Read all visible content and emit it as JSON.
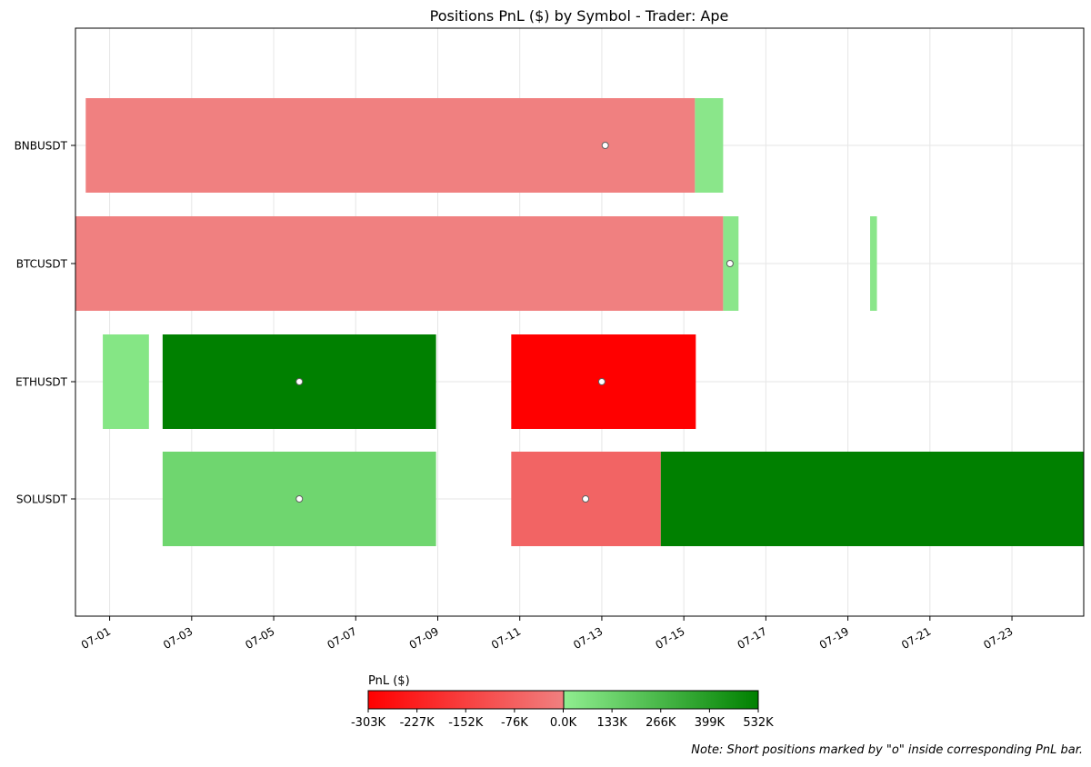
{
  "chart_data": {
    "type": "bar",
    "orientation": "horizontal-timeline",
    "title": "Positions PnL ($) by Symbol - Trader: Ape",
    "xlabel": "",
    "ylabel": "",
    "x_axis_type": "date",
    "xlim": [
      "2025-06-30 04:00",
      "2025-07-24 18:00"
    ],
    "x_ticks": [
      {
        "date": "2025-07-01",
        "label": "07-01"
      },
      {
        "date": "2025-07-03",
        "label": "07-03"
      },
      {
        "date": "2025-07-05",
        "label": "07-05"
      },
      {
        "date": "2025-07-07",
        "label": "07-07"
      },
      {
        "date": "2025-07-09",
        "label": "07-09"
      },
      {
        "date": "2025-07-11",
        "label": "07-11"
      },
      {
        "date": "2025-07-13",
        "label": "07-13"
      },
      {
        "date": "2025-07-15",
        "label": "07-15"
      },
      {
        "date": "2025-07-17",
        "label": "07-17"
      },
      {
        "date": "2025-07-19",
        "label": "07-19"
      },
      {
        "date": "2025-07-21",
        "label": "07-21"
      },
      {
        "date": "2025-07-23",
        "label": "07-23"
      }
    ],
    "categories": [
      "BNBUSDT",
      "BTCUSDT",
      "ETHUSDT",
      "SOLUSDT"
    ],
    "grid": true,
    "positions": [
      {
        "symbol": "BNBUSDT",
        "start": "2025-06-30 10:00",
        "end": "2025-07-15 06:30",
        "color": "#f08080",
        "short": true,
        "marker_at": "2025-07-13 02:00"
      },
      {
        "symbol": "BNBUSDT",
        "start": "2025-07-15 06:30",
        "end": "2025-07-15 23:00",
        "color": "#8ae68a",
        "short": false
      },
      {
        "symbol": "BTCUSDT",
        "start": "2025-06-30 04:00",
        "end": "2025-07-15 23:00",
        "color": "#f08080",
        "short": false
      },
      {
        "symbol": "BTCUSDT",
        "start": "2025-07-15 23:00",
        "end": "2025-07-16 08:00",
        "color": "#8ae68a",
        "short": true,
        "marker_at": "2025-07-16 03:00"
      },
      {
        "symbol": "BTCUSDT",
        "start": "2025-07-19 13:00",
        "end": "2025-07-19 17:00",
        "color": "#8ae68a",
        "short": false
      },
      {
        "symbol": "ETHUSDT",
        "start": "2025-06-30 20:00",
        "end": "2025-07-01 23:00",
        "color": "#85e685",
        "short": false
      },
      {
        "symbol": "ETHUSDT",
        "start": "2025-07-02 07:00",
        "end": "2025-07-08 23:00",
        "color": "#008000",
        "short": true,
        "marker_at": "2025-07-05 15:00"
      },
      {
        "symbol": "ETHUSDT",
        "start": "2025-07-10 19:00",
        "end": "2025-07-15 07:00",
        "color": "#ff0000",
        "short": true,
        "marker_at": "2025-07-13 00:00"
      },
      {
        "symbol": "SOLUSDT",
        "start": "2025-07-02 07:00",
        "end": "2025-07-08 23:00",
        "color": "#6fd66f",
        "short": true,
        "marker_at": "2025-07-05 15:00"
      },
      {
        "symbol": "SOLUSDT",
        "start": "2025-07-10 19:00",
        "end": "2025-07-14 10:30",
        "color": "#f26464",
        "short": true,
        "marker_at": "2025-07-12 14:30"
      },
      {
        "symbol": "SOLUSDT",
        "start": "2025-07-14 10:30",
        "end": "2025-07-24 18:00",
        "color": "#008000",
        "short": false
      }
    ],
    "colorbar": {
      "label": "PnL ($)",
      "negative_colors": [
        "#ff0000",
        "#f08080"
      ],
      "positive_colors": [
        "#90ee90",
        "#008000"
      ],
      "tick_labels": [
        "-303K",
        "-227K",
        "-152K",
        "-76K",
        "0.0K",
        "133K",
        "266K",
        "399K",
        "532K"
      ]
    }
  },
  "note": "Note: Short positions marked by \"o\" inside corresponding PnL bar."
}
